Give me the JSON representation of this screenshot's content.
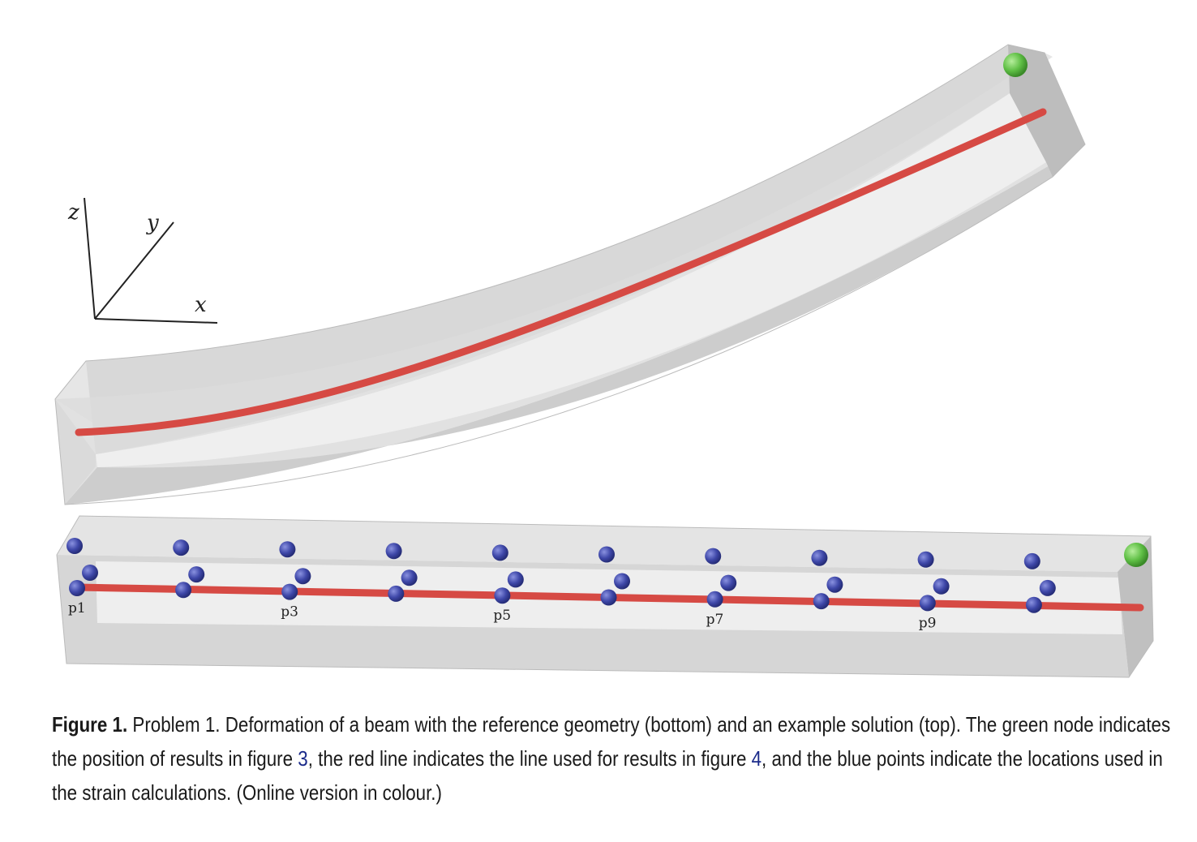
{
  "figure": {
    "axes": {
      "x": "x",
      "y": "y",
      "z": "z"
    },
    "point_labels": [
      "p1",
      "p3",
      "p5",
      "p7",
      "p9"
    ],
    "colors": {
      "beam": "#c9c9c9",
      "line": "#d64a44",
      "node": "#5fbf45",
      "points": "#3e47a8"
    }
  },
  "caption": {
    "lead": "Figure 1.",
    "text1": " Problem 1. Deformation of a beam with the reference geometry (bottom) and an example solution (top). The green node indicates the position of results in figure ",
    "ref1": "3",
    "text2": ", the red line indicates the line used for results in figure ",
    "ref2": "4",
    "text3": ", and the blue points indicate the locations used in the strain calculations. (Online version in colour.)"
  }
}
